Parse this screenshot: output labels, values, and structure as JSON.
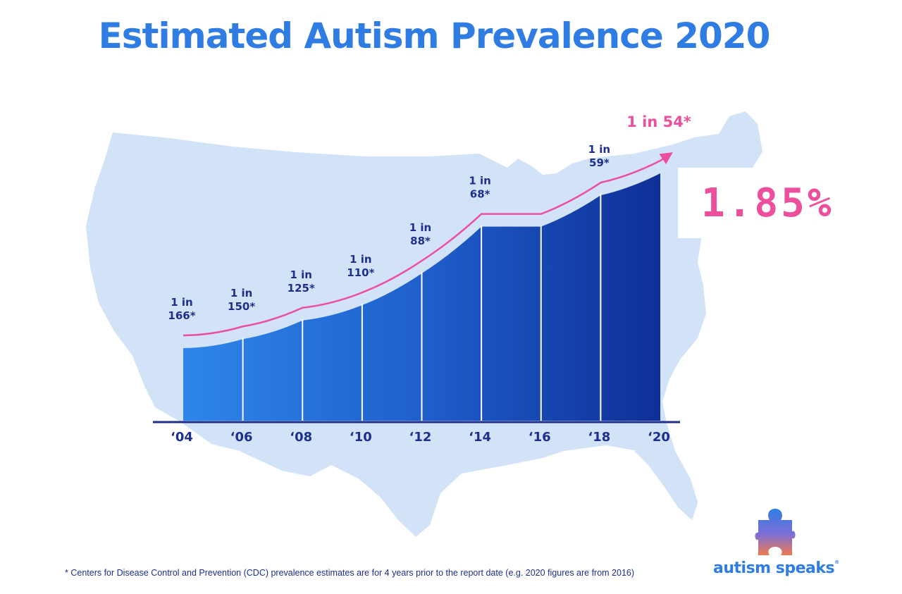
{
  "title": "Estimated Autism Prevalence 2020",
  "highlight_percent": "1.85%",
  "footnote": "* Centers for Disease Control and Prevention (CDC) prevalence estimates are for 4 years prior to the report date (e.g. 2020 figures are from 2016)",
  "brand": {
    "name": "autism speaks",
    "icon": "puzzle-piece-icon",
    "colors": {
      "title_blue": "#2f7de3",
      "navy": "#1d2f8a",
      "pink": "#ec4f9b",
      "map_bg": "#d2e3f8"
    }
  },
  "chart_data": {
    "type": "area",
    "title": "Estimated Autism Prevalence 2020",
    "background": "us-map-silhouette",
    "categories": [
      "‘04",
      "‘06",
      "‘08",
      "‘10",
      "‘12",
      "‘14",
      "‘16",
      "‘18",
      "‘20"
    ],
    "x": [
      2004,
      2006,
      2008,
      2010,
      2012,
      2014,
      2016,
      2018,
      2020
    ],
    "series": [
      {
        "values": [
          166,
          150,
          125,
          110,
          88,
          68,
          68,
          59,
          54
        ],
        "labels": [
          "1 in 166*",
          "1 in 150*",
          "1 in 125*",
          "1 in 110*",
          "1 in 88*",
          "1 in 68*",
          "",
          "1 in 59*",
          "1 in 54*"
        ]
      }
    ],
    "highlight": {
      "label": "1 in 54*",
      "percent": "1.85%"
    },
    "grid": false,
    "legend": "none"
  }
}
